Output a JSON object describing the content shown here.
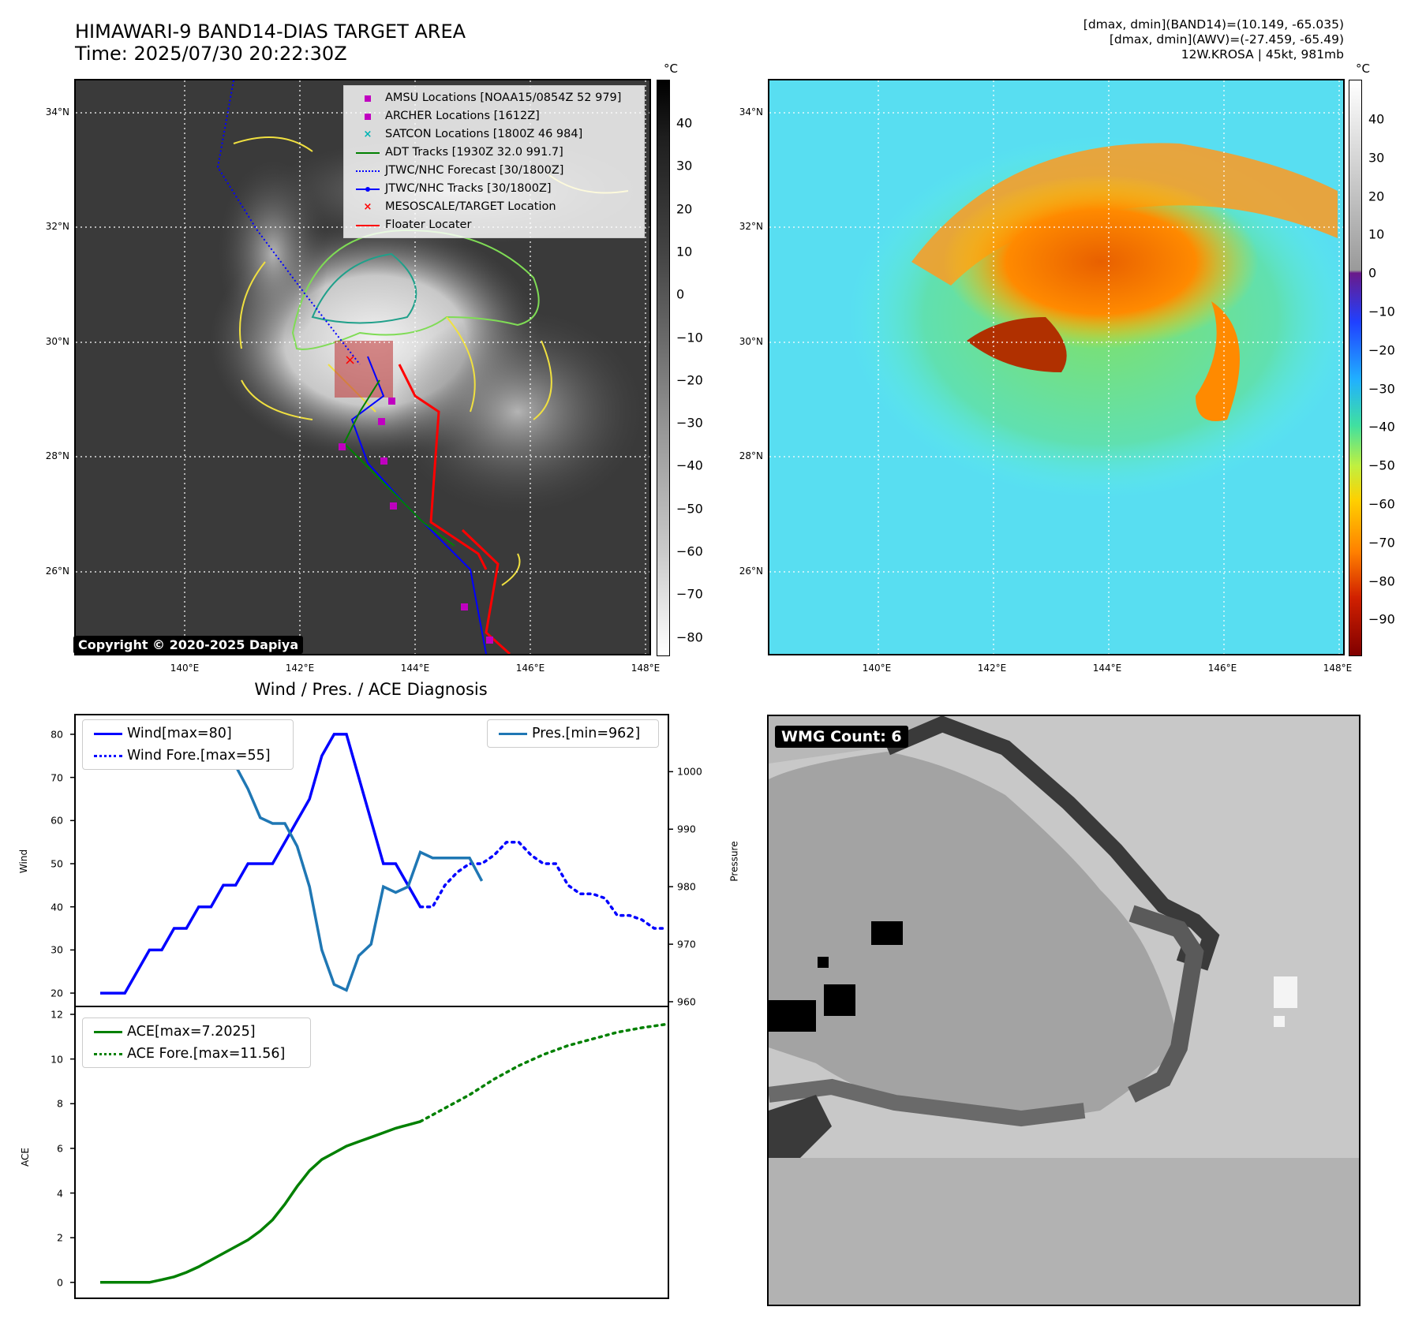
{
  "header": {
    "title_line1": "HIMAWARI-9 BAND14-DIAS TARGET AREA",
    "title_line2": "Time: 2025/07/30 20:22:30Z",
    "info_line1": "[dmax, dmin](BAND14)=(10.149, -65.035)",
    "info_line2": "[dmax, dmin](AWV)=(-27.459, -65.49)",
    "info_line3": "12W.KROSA | 45kt, 981mb"
  },
  "map": {
    "lat_labels": [
      "34°N",
      "32°N",
      "30°N",
      "28°N",
      "26°N"
    ],
    "lon_labels": [
      "140°E",
      "142°E",
      "144°E",
      "146°E",
      "148°E"
    ],
    "copyright": "Copyright © 2020-2025 Dapiya",
    "legend": [
      {
        "label": "AMSU Locations [NOAA15/0854Z 52 979]",
        "symbol": "square",
        "color": "#c000c0"
      },
      {
        "label": "ARCHER Locations [1612Z]",
        "symbol": "square",
        "color": "#c000c0"
      },
      {
        "label": "SATCON Locations [1800Z 46 984]",
        "symbol": "x",
        "color": "#00b4b4"
      },
      {
        "label": "ADT Tracks [1930Z 32.0 991.7]",
        "symbol": "line",
        "color": "#008000"
      },
      {
        "label": "JTWC/NHC Forecast [30/1800Z]",
        "symbol": "dotted",
        "color": "#0000ff"
      },
      {
        "label": "JTWC/NHC Tracks [30/1800Z]",
        "symbol": "dotline",
        "color": "#0000ff"
      },
      {
        "label": "MESOSCALE/TARGET Location",
        "symbol": "x",
        "color": "#ff0000"
      },
      {
        "label": "Floater Locater",
        "symbol": "line",
        "color": "#ff0000"
      }
    ]
  },
  "colorbar_left": {
    "unit": "°C",
    "ticks": [
      "40",
      "30",
      "20",
      "10",
      "0",
      "−10",
      "−20",
      "−30",
      "−40",
      "−50",
      "−60",
      "−70",
      "−80"
    ]
  },
  "colorbar_right": {
    "unit": "°C",
    "ticks": [
      "40",
      "30",
      "20",
      "10",
      "0",
      "−10",
      "−20",
      "−30",
      "−40",
      "−50",
      "−60",
      "−70",
      "−80",
      "−90"
    ]
  },
  "wmg": {
    "badge": "WMG Count: 6"
  },
  "chart_data": [
    {
      "type": "line",
      "title": "Wind / Pres. / ACE Diagnosis",
      "ylabel": "Wind",
      "ylabel_right": "Pressure",
      "ylim": [
        18,
        82
      ],
      "ylim_right": [
        960,
        1008
      ],
      "y_ticks": [
        "80",
        "70",
        "60",
        "50",
        "40",
        "30",
        "20"
      ],
      "y_ticks_right": [
        "1000",
        "990",
        "980",
        "970",
        "960"
      ],
      "series": [
        {
          "name": "Wind[max=80]",
          "style": "solid",
          "color": "#0000ff",
          "axis": "left",
          "x": [
            0,
            1,
            2,
            3,
            4,
            5,
            6,
            7,
            8,
            9,
            10,
            11,
            12,
            13,
            14,
            15,
            16,
            17,
            18,
            19,
            20,
            21,
            22,
            23,
            24,
            25,
            26
          ],
          "values": [
            20,
            20,
            20,
            25,
            30,
            30,
            35,
            35,
            40,
            40,
            45,
            45,
            50,
            50,
            50,
            55,
            60,
            65,
            75,
            80,
            80,
            70,
            60,
            50,
            50,
            45,
            40
          ]
        },
        {
          "name": "Wind Fore.[max=55]",
          "style": "dotted",
          "color": "#0000ff",
          "axis": "left",
          "x": [
            26,
            27,
            28,
            29,
            30,
            31,
            32,
            33,
            34,
            35,
            36,
            37,
            38,
            39,
            40,
            41,
            42,
            43,
            44,
            45,
            46
          ],
          "values": [
            40,
            40,
            45,
            48,
            50,
            50,
            52,
            55,
            55,
            52,
            50,
            50,
            45,
            43,
            43,
            42,
            38,
            38,
            37,
            35,
            35
          ]
        },
        {
          "name": "Pres.[min=962]",
          "style": "solid",
          "color": "#1f77b4",
          "axis": "right",
          "x": [
            0,
            1,
            2,
            3,
            4,
            5,
            6,
            7,
            8,
            9,
            10,
            11,
            12,
            13,
            14,
            15,
            16,
            17,
            18,
            19,
            20,
            21,
            22,
            23,
            24,
            25,
            26,
            27,
            28,
            29,
            30,
            31
          ],
          "values": [
            1007,
            1007,
            1007,
            1005,
            1005,
            1004,
            1004,
            1002,
            1002,
            1001,
            1001,
            1001,
            997,
            992,
            991,
            991,
            987,
            980,
            969,
            963,
            962,
            968,
            970,
            980,
            979,
            980,
            986,
            985,
            985,
            985,
            985,
            981
          ]
        }
      ]
    },
    {
      "type": "line",
      "ylabel": "ACE",
      "ylim": [
        -0.5,
        12
      ],
      "y_ticks": [
        "12",
        "10",
        "8",
        "6",
        "4",
        "2",
        "0"
      ],
      "series": [
        {
          "name": "ACE[max=7.2025]",
          "style": "solid",
          "color": "#008000",
          "x": [
            0,
            2,
            4,
            5,
            6,
            7,
            8,
            9,
            10,
            11,
            12,
            13,
            14,
            15,
            16,
            17,
            18,
            19,
            20,
            21,
            22,
            23,
            24,
            25,
            26
          ],
          "values": [
            0,
            0,
            0,
            0.12,
            0.25,
            0.45,
            0.7,
            1.0,
            1.3,
            1.6,
            1.9,
            2.3,
            2.8,
            3.5,
            4.3,
            5.0,
            5.5,
            5.8,
            6.1,
            6.3,
            6.5,
            6.7,
            6.9,
            7.05,
            7.2025
          ]
        },
        {
          "name": "ACE Fore.[max=11.56]",
          "style": "dotted",
          "color": "#008000",
          "x": [
            26,
            28,
            30,
            32,
            34,
            36,
            38,
            40,
            42,
            44,
            46
          ],
          "values": [
            7.2025,
            7.8,
            8.4,
            9.1,
            9.7,
            10.2,
            10.6,
            10.9,
            11.2,
            11.4,
            11.56
          ]
        }
      ]
    }
  ]
}
